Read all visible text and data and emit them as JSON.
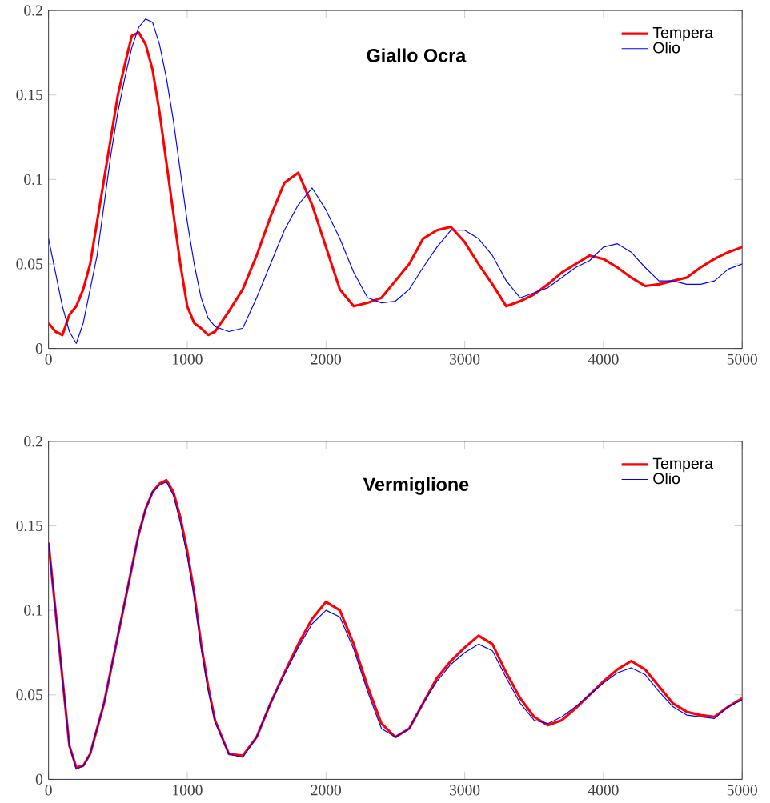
{
  "chart_data": [
    {
      "type": "line",
      "title": "Giallo Ocra",
      "legend": "top right",
      "line_style": "solid",
      "x": [
        0,
        50,
        100,
        150,
        200,
        250,
        300,
        350,
        400,
        450,
        500,
        550,
        600,
        650,
        700,
        750,
        800,
        850,
        900,
        950,
        1000,
        1050,
        1100,
        1150,
        1200,
        1300,
        1400,
        1500,
        1600,
        1700,
        1800,
        1900,
        2000,
        2100,
        2200,
        2300,
        2400,
        2500,
        2600,
        2700,
        2800,
        2900,
        3000,
        3100,
        3200,
        3300,
        3400,
        3500,
        3600,
        3700,
        3800,
        3900,
        4000,
        4100,
        4200,
        4300,
        4400,
        4500,
        4600,
        4700,
        4800,
        4900,
        5000
      ],
      "series": [
        {
          "name": "Tempera",
          "color": "#ff0000",
          "values": [
            0.015,
            0.01,
            0.008,
            0.02,
            0.025,
            0.035,
            0.05,
            0.075,
            0.1,
            0.125,
            0.15,
            0.168,
            0.185,
            0.187,
            0.18,
            0.165,
            0.14,
            0.11,
            0.08,
            0.05,
            0.025,
            0.015,
            0.012,
            0.008,
            0.01,
            0.022,
            0.035,
            0.055,
            0.078,
            0.098,
            0.104,
            0.085,
            0.06,
            0.035,
            0.025,
            0.027,
            0.03,
            0.04,
            0.05,
            0.065,
            0.07,
            0.072,
            0.063,
            0.05,
            0.038,
            0.025,
            0.028,
            0.032,
            0.038,
            0.045,
            0.05,
            0.055,
            0.053,
            0.048,
            0.042,
            0.037,
            0.038,
            0.04,
            0.042,
            0.048,
            0.053,
            0.057,
            0.06
          ]
        },
        {
          "name": "Olio",
          "color": "#0000ff",
          "values": [
            0.065,
            0.045,
            0.025,
            0.01,
            0.003,
            0.015,
            0.035,
            0.055,
            0.085,
            0.115,
            0.14,
            0.16,
            0.178,
            0.19,
            0.195,
            0.193,
            0.18,
            0.16,
            0.135,
            0.105,
            0.075,
            0.05,
            0.03,
            0.018,
            0.013,
            0.01,
            0.012,
            0.03,
            0.05,
            0.07,
            0.085,
            0.095,
            0.082,
            0.065,
            0.045,
            0.03,
            0.027,
            0.028,
            0.035,
            0.048,
            0.06,
            0.07,
            0.07,
            0.065,
            0.055,
            0.04,
            0.03,
            0.033,
            0.036,
            0.042,
            0.048,
            0.052,
            0.06,
            0.062,
            0.057,
            0.048,
            0.04,
            0.04,
            0.038,
            0.038,
            0.04,
            0.047,
            0.05
          ]
        }
      ],
      "xlim": [
        0,
        5000
      ],
      "ylim": [
        0,
        0.2
      ],
      "xticks": [
        0,
        1000,
        2000,
        3000,
        4000,
        5000
      ],
      "yticks": [
        0,
        0.05,
        0.1,
        0.15,
        0.2
      ]
    },
    {
      "type": "line",
      "title": "Vermiglione",
      "legend": "top right",
      "line_style": "solid",
      "x": [
        0,
        50,
        100,
        150,
        200,
        250,
        300,
        350,
        400,
        450,
        500,
        550,
        600,
        650,
        700,
        750,
        800,
        850,
        900,
        950,
        1000,
        1050,
        1100,
        1150,
        1200,
        1300,
        1400,
        1500,
        1600,
        1700,
        1800,
        1900,
        2000,
        2100,
        2200,
        2300,
        2400,
        2500,
        2600,
        2700,
        2800,
        2900,
        3000,
        3100,
        3200,
        3300,
        3400,
        3500,
        3600,
        3700,
        3800,
        3900,
        4000,
        4100,
        4200,
        4300,
        4400,
        4500,
        4600,
        4700,
        4800,
        4900,
        5000
      ],
      "series": [
        {
          "name": "Tempera",
          "color": "#ff0000",
          "values": [
            0.14,
            0.1,
            0.06,
            0.02,
            0.007,
            0.008,
            0.015,
            0.03,
            0.045,
            0.065,
            0.085,
            0.105,
            0.125,
            0.145,
            0.16,
            0.17,
            0.175,
            0.177,
            0.17,
            0.155,
            0.135,
            0.11,
            0.08,
            0.055,
            0.035,
            0.015,
            0.014,
            0.025,
            0.045,
            0.063,
            0.08,
            0.095,
            0.105,
            0.1,
            0.08,
            0.055,
            0.033,
            0.025,
            0.03,
            0.045,
            0.06,
            0.07,
            0.078,
            0.085,
            0.08,
            0.063,
            0.048,
            0.037,
            0.032,
            0.035,
            0.042,
            0.05,
            0.058,
            0.065,
            0.07,
            0.065,
            0.055,
            0.045,
            0.04,
            0.038,
            0.037,
            0.043,
            0.048
          ]
        },
        {
          "name": "Olio",
          "color": "#0000ff",
          "values": [
            0.14,
            0.1,
            0.06,
            0.02,
            0.006,
            0.008,
            0.015,
            0.03,
            0.045,
            0.065,
            0.085,
            0.105,
            0.125,
            0.145,
            0.16,
            0.17,
            0.174,
            0.176,
            0.168,
            0.152,
            0.132,
            0.108,
            0.078,
            0.053,
            0.034,
            0.015,
            0.013,
            0.025,
            0.045,
            0.062,
            0.078,
            0.092,
            0.1,
            0.096,
            0.077,
            0.052,
            0.03,
            0.025,
            0.03,
            0.045,
            0.058,
            0.068,
            0.075,
            0.08,
            0.076,
            0.06,
            0.045,
            0.035,
            0.033,
            0.037,
            0.043,
            0.05,
            0.057,
            0.063,
            0.066,
            0.062,
            0.052,
            0.043,
            0.038,
            0.037,
            0.036,
            0.043,
            0.047
          ]
        }
      ],
      "xlim": [
        0,
        5000
      ],
      "ylim": [
        0,
        0.2
      ],
      "xticks": [
        0,
        1000,
        2000,
        3000,
        4000,
        5000
      ],
      "yticks": [
        0,
        0.05,
        0.1,
        0.15,
        0.2
      ]
    }
  ]
}
